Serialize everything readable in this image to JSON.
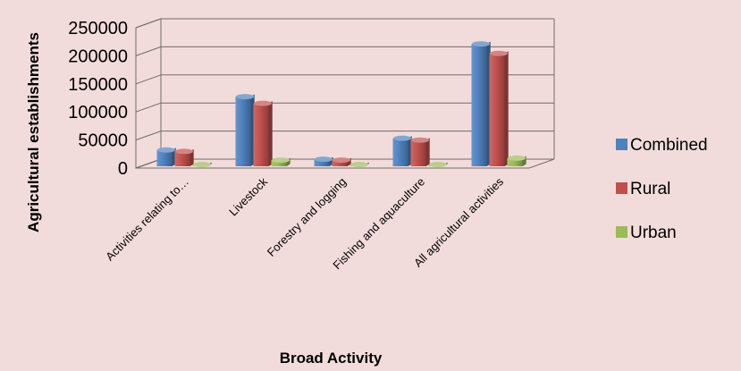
{
  "chart_data": {
    "type": "bar",
    "categories": [
      "Activities relating to…",
      "Livestock",
      "Forestry and logging",
      "Fishing and aquaculture",
      "All agricultural activities"
    ],
    "series": [
      {
        "name": "Combined",
        "color": "#4F81BD",
        "values": [
          29000,
          124000,
          12500,
          50000,
          218000
        ]
      },
      {
        "name": "Rural",
        "color": "#C0504D",
        "values": [
          26500,
          112000,
          11000,
          46500,
          201000
        ]
      },
      {
        "name": "Urban",
        "color": "#9BBB59",
        "values": [
          1500,
          11000,
          1000,
          3000,
          14500
        ]
      }
    ],
    "yticks": [
      "0",
      "50000",
      "100000",
      "150000",
      "200000",
      "250000"
    ],
    "ylim": [
      0,
      250000
    ],
    "xlabel": "Broad Activity",
    "ylabel": "Agricultural establishments",
    "legend_position": "right",
    "grid": true
  }
}
